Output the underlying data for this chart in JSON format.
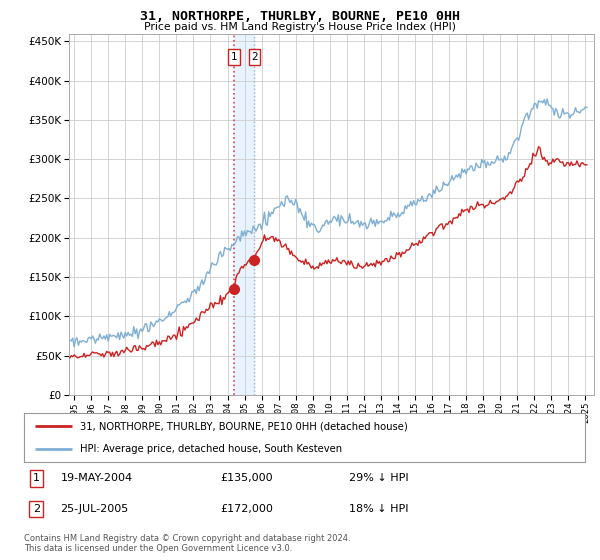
{
  "title": "31, NORTHORPE, THURLBY, BOURNE, PE10 0HH",
  "subtitle": "Price paid vs. HM Land Registry's House Price Index (HPI)",
  "legend_line1": "31, NORTHORPE, THURLBY, BOURNE, PE10 0HH (detached house)",
  "legend_line2": "HPI: Average price, detached house, South Kesteven",
  "transaction1_date": "19-MAY-2004",
  "transaction1_price": "£135,000",
  "transaction1_pct": "29% ↓ HPI",
  "transaction2_date": "25-JUL-2005",
  "transaction2_price": "£172,000",
  "transaction2_pct": "18% ↓ HPI",
  "footer": "Contains HM Land Registry data © Crown copyright and database right 2024.\nThis data is licensed under the Open Government Licence v3.0.",
  "hpi_color": "#7fafd4",
  "price_color": "#cc2222",
  "marker1_date": 2004.38,
  "marker1_price": 135000,
  "marker2_date": 2005.58,
  "marker2_price": 172000,
  "ylim_min": 0,
  "ylim_max": 460000,
  "xlim_min": 1994.7,
  "xlim_max": 2025.5,
  "grid_color": "#cccccc",
  "background_color": "#ffffff",
  "vline1_color": "#dd4444",
  "vline2_color": "#aaaacc",
  "shade_color": "#ddeeff"
}
